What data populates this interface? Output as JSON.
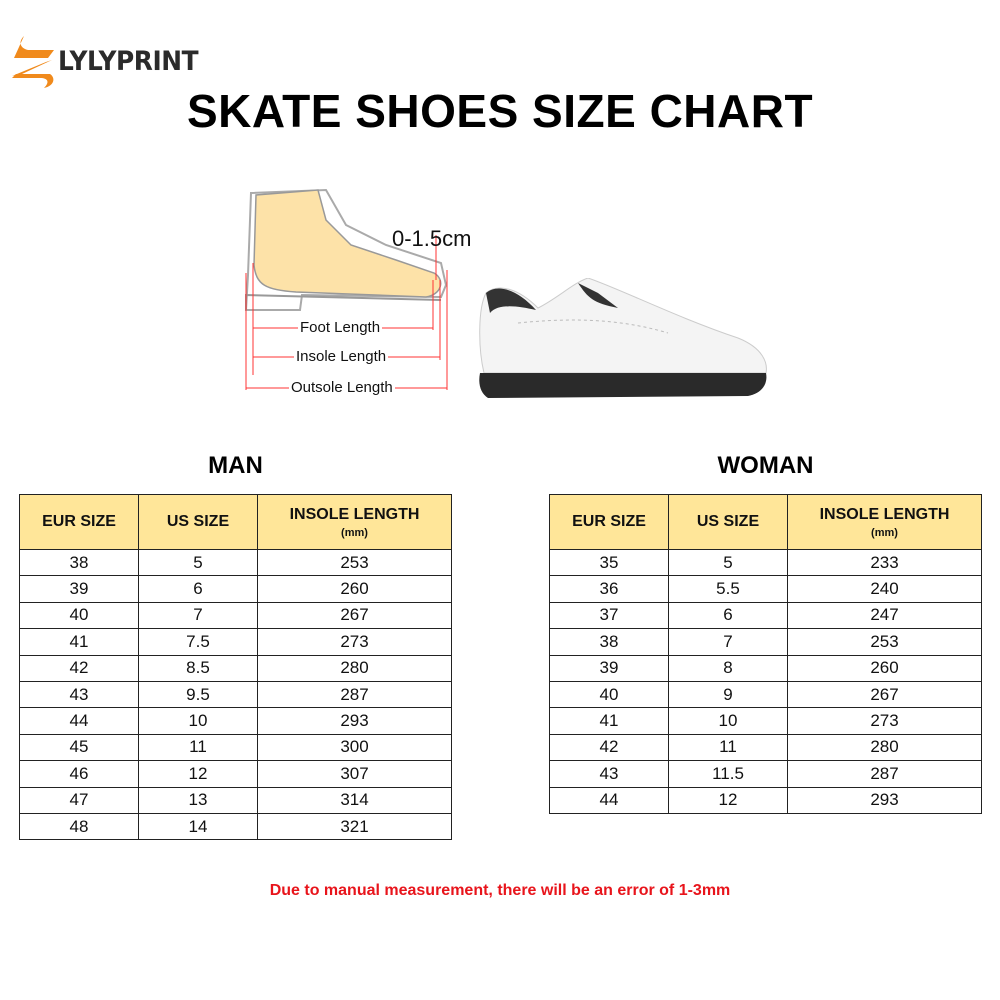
{
  "brand": {
    "name": "LYLYPRINT",
    "accent": "#F08A1C"
  },
  "title": "SKATE SHOES SIZE CHART",
  "diagram": {
    "gap_label": "0-1.5cm",
    "labels": [
      "Foot Length",
      "Insole Length",
      "Outsole Length"
    ]
  },
  "header_color": "#FFE699",
  "columns": {
    "eur": "EUR SIZE",
    "us": "US SIZE",
    "insole": "INSOLE LENGTH",
    "unit": "(mm)"
  },
  "man": {
    "title": "MAN",
    "rows": [
      [
        "38",
        "5",
        "253"
      ],
      [
        "39",
        "6",
        "260"
      ],
      [
        "40",
        "7",
        "267"
      ],
      [
        "41",
        "7.5",
        "273"
      ],
      [
        "42",
        "8.5",
        "280"
      ],
      [
        "43",
        "9.5",
        "287"
      ],
      [
        "44",
        "10",
        "293"
      ],
      [
        "45",
        "11",
        "300"
      ],
      [
        "46",
        "12",
        "307"
      ],
      [
        "47",
        "13",
        "314"
      ],
      [
        "48",
        "14",
        "321"
      ]
    ]
  },
  "woman": {
    "title": "WOMAN",
    "rows": [
      [
        "35",
        "5",
        "233"
      ],
      [
        "36",
        "5.5",
        "240"
      ],
      [
        "37",
        "6",
        "247"
      ],
      [
        "38",
        "7",
        "253"
      ],
      [
        "39",
        "8",
        "260"
      ],
      [
        "40",
        "9",
        "267"
      ],
      [
        "41",
        "10",
        "273"
      ],
      [
        "42",
        "11",
        "280"
      ],
      [
        "43",
        "11.5",
        "287"
      ],
      [
        "44",
        "12",
        "293"
      ]
    ]
  },
  "note": "Due to manual measurement, there will be an error of 1-3mm",
  "note_color": "#E8141B"
}
